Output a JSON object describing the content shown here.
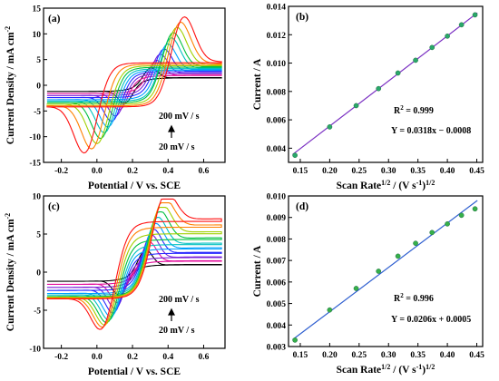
{
  "chart_data": [
    {
      "panel": "(a)",
      "type": "line",
      "xlabel": "Potential / V vs. SCE",
      "ylabel": "Current Density / mA cm",
      "ylabel_sup": "-2",
      "xlim": [
        -0.3,
        0.72
      ],
      "ylim": [
        -15,
        15
      ],
      "xticks": [
        -0.2,
        0.0,
        0.2,
        0.4,
        0.6
      ],
      "xtick_labels": [
        "-0.2",
        "0.0",
        "0.2",
        "0.4",
        "0.6"
      ],
      "yticks": [
        -15,
        -10,
        -5,
        0,
        5,
        10,
        15
      ],
      "ytick_labels": [
        "-15",
        "-10",
        "-5",
        "0",
        "5",
        "10",
        "15"
      ],
      "grid": false,
      "series_colors": [
        "#000000",
        "#e30c9b",
        "#7a1fd8",
        "#2828ff",
        "#00a0ff",
        "#00c0c0",
        "#00c040",
        "#a0d000",
        "#ff8000",
        "#ff1010"
      ],
      "cv_params": {
        "scan_rates_mV_s": [
          20,
          40,
          60,
          80,
          100,
          120,
          140,
          160,
          180,
          200
        ],
        "anodic_peak_potential_V": [
          0.3,
          0.33,
          0.35,
          0.37,
          0.39,
          0.41,
          0.42,
          0.44,
          0.46,
          0.48
        ],
        "cathodic_peak_potential_V": [
          0.16,
          0.13,
          0.11,
          0.09,
          0.07,
          0.05,
          0.03,
          0.01,
          -0.02,
          -0.06
        ],
        "anodic_peak_current": [
          3.4,
          4.8,
          6.0,
          7.0,
          8.0,
          9.2,
          10.2,
          11.2,
          12.2,
          13.2
        ],
        "cathodic_peak_current": [
          -3.6,
          -4.9,
          -6.1,
          -7.1,
          -8.2,
          -9.3,
          -10.4,
          -11.4,
          -12.4,
          -13.2
        ],
        "start_current": [
          -1.2,
          -1.6,
          -2.0,
          -2.4,
          -2.8,
          -3.1,
          -3.4,
          -3.7,
          -4.0,
          -4.2
        ],
        "end_current": [
          1.5,
          2.0,
          2.4,
          2.8,
          3.1,
          3.4,
          3.7,
          4.0,
          4.3,
          4.6
        ]
      },
      "annotations": {
        "top": "200 mV / s",
        "bottom": "20 mV / s"
      }
    },
    {
      "panel": "(b)",
      "type": "scatter",
      "xlabel": "Scan Rate",
      "xlabel_sup": "1/2",
      "xlabel_unit": " / (V s",
      "xlabel_unit_sup": "-1",
      "xlabel_close": ")",
      "xlabel_close_sup": "1/2",
      "ylabel": "Current / A",
      "xlim": [
        0.13,
        0.46
      ],
      "ylim": [
        0.003,
        0.014
      ],
      "xticks": [
        0.15,
        0.2,
        0.25,
        0.3,
        0.35,
        0.4,
        0.45
      ],
      "xtick_labels": [
        "0.15",
        "0.20",
        "0.25",
        "0.30",
        "0.35",
        "0.40",
        "0.45"
      ],
      "yticks": [
        0.004,
        0.006,
        0.008,
        0.01,
        0.012,
        0.014
      ],
      "ytick_labels": [
        "0.004",
        "0.006",
        "0.008",
        "0.010",
        "0.012",
        "0.014"
      ],
      "grid": false,
      "x": [
        0.141,
        0.2,
        0.245,
        0.283,
        0.316,
        0.346,
        0.374,
        0.4,
        0.424,
        0.447
      ],
      "y": [
        0.0035,
        0.0055,
        0.007,
        0.0082,
        0.0093,
        0.0102,
        0.0111,
        0.0119,
        0.0127,
        0.0134
      ],
      "fit": {
        "slope": 0.0318,
        "intercept": -0.0008
      },
      "line_color": "#7a2fc2",
      "marker_color": "#2aa86a",
      "annotations": {
        "r2_label": "R",
        "r2_sup": "2",
        "r2_value": " = 0.999",
        "equation": "Y = 0.0318x − 0.0008"
      }
    },
    {
      "panel": "(c)",
      "type": "line",
      "xlabel": "Potential / V vs. SCE",
      "ylabel": "Current Density / mA cm",
      "ylabel_sup": "-2",
      "xlim": [
        -0.3,
        0.72
      ],
      "ylim": [
        -10,
        10
      ],
      "xticks": [
        -0.2,
        0.0,
        0.2,
        0.4,
        0.6
      ],
      "xtick_labels": [
        "-0.2",
        "0.0",
        "0.2",
        "0.4",
        "0.6"
      ],
      "yticks": [
        -10,
        -5,
        0,
        5,
        10
      ],
      "ytick_labels": [
        "-10",
        "-5",
        "0",
        "5",
        "10"
      ],
      "grid": false,
      "series_colors": [
        "#000000",
        "#e30c9b",
        "#7a1fd8",
        "#2828ff",
        "#00a0ff",
        "#00c0c0",
        "#00c040",
        "#a0d000",
        "#ff8000",
        "#ff1010"
      ],
      "cv_params": {
        "scan_rates_mV_s": [
          20,
          40,
          60,
          80,
          100,
          120,
          140,
          160,
          180,
          200
        ],
        "anodic_peak_potential_V": [
          0.27,
          0.29,
          0.3,
          0.31,
          0.32,
          0.33,
          0.34,
          0.35,
          0.36,
          0.37
        ],
        "cathodic_peak_potential_V": [
          0.13,
          0.12,
          0.11,
          0.1,
          0.09,
          0.08,
          0.07,
          0.06,
          0.05,
          0.04
        ],
        "anodic_peak_current": [
          3.0,
          4.0,
          4.9,
          5.6,
          6.3,
          7.0,
          7.7,
          8.3,
          8.9,
          9.4
        ],
        "cathodic_peak_current": [
          -3.0,
          -4.0,
          -4.8,
          -5.4,
          -5.9,
          -6.4,
          -6.8,
          -7.2,
          -7.6,
          -8.0
        ],
        "start_current": [
          -1.2,
          -1.6,
          -2.0,
          -2.4,
          -2.8,
          -3.0,
          -3.2,
          -3.3,
          -3.4,
          -3.5
        ],
        "end_current": [
          1.0,
          1.5,
          2.0,
          2.6,
          3.2,
          3.8,
          4.5,
          5.3,
          6.2,
          7.0
        ]
      },
      "annotations": {
        "top": "200 mV / s",
        "bottom": "20 mV / s"
      }
    },
    {
      "panel": "(d)",
      "type": "scatter",
      "xlabel": "Scan Rate",
      "xlabel_sup": "1/2",
      "xlabel_unit": " / (V s",
      "xlabel_unit_sup": "-1",
      "xlabel_close": ")",
      "xlabel_close_sup": "1/2",
      "ylabel": "Current / A",
      "xlim": [
        0.13,
        0.46
      ],
      "ylim": [
        0.003,
        0.01
      ],
      "xticks": [
        0.15,
        0.2,
        0.25,
        0.3,
        0.35,
        0.4,
        0.45
      ],
      "xtick_labels": [
        "0.15",
        "0.20",
        "0.25",
        "0.30",
        "0.35",
        "0.40",
        "0.45"
      ],
      "yticks": [
        0.003,
        0.004,
        0.005,
        0.006,
        0.007,
        0.008,
        0.009,
        0.01
      ],
      "ytick_labels": [
        "0.003",
        "0.004",
        "0.005",
        "0.006",
        "0.007",
        "0.008",
        "0.009",
        "0.010"
      ],
      "grid": false,
      "x": [
        0.141,
        0.2,
        0.245,
        0.283,
        0.316,
        0.346,
        0.374,
        0.4,
        0.424,
        0.447
      ],
      "y": [
        0.0033,
        0.0047,
        0.0057,
        0.0065,
        0.0072,
        0.0078,
        0.0083,
        0.0087,
        0.0091,
        0.0094
      ],
      "fit": {
        "slope": 0.0206,
        "intercept": 0.0005
      },
      "line_color": "#2f5fd0",
      "marker_color": "#36b04a",
      "annotations": {
        "r2_label": "R",
        "r2_sup": "2",
        "r2_value": " = 0.996",
        "equation": "Y = 0.0206x + 0.0005"
      }
    }
  ]
}
